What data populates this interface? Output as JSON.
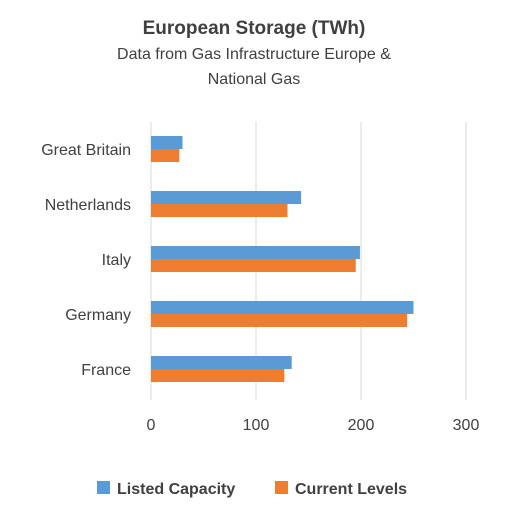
{
  "chart_data": {
    "type": "bar",
    "orientation": "horizontal",
    "title": "European Storage (TWh)",
    "subtitle_lines": [
      "Data from Gas Infrastructure Europe &",
      "National Gas"
    ],
    "categories": [
      "Great Britain",
      "Netherlands",
      "Italy",
      "Germany",
      "France"
    ],
    "series": [
      {
        "name": "Listed Capacity",
        "color": "#5b9bd5",
        "values": [
          30,
          143,
          199,
          250,
          134
        ]
      },
      {
        "name": "Current Levels",
        "color": "#ed7d31",
        "values": [
          27,
          130,
          195,
          244,
          127
        ]
      }
    ],
    "xlim": [
      0,
      300
    ],
    "xticks": [
      0,
      100,
      200,
      300
    ],
    "xtick_labels": [
      "0",
      "100",
      "200",
      "300"
    ],
    "grid": true,
    "legend_position": "bottom"
  }
}
